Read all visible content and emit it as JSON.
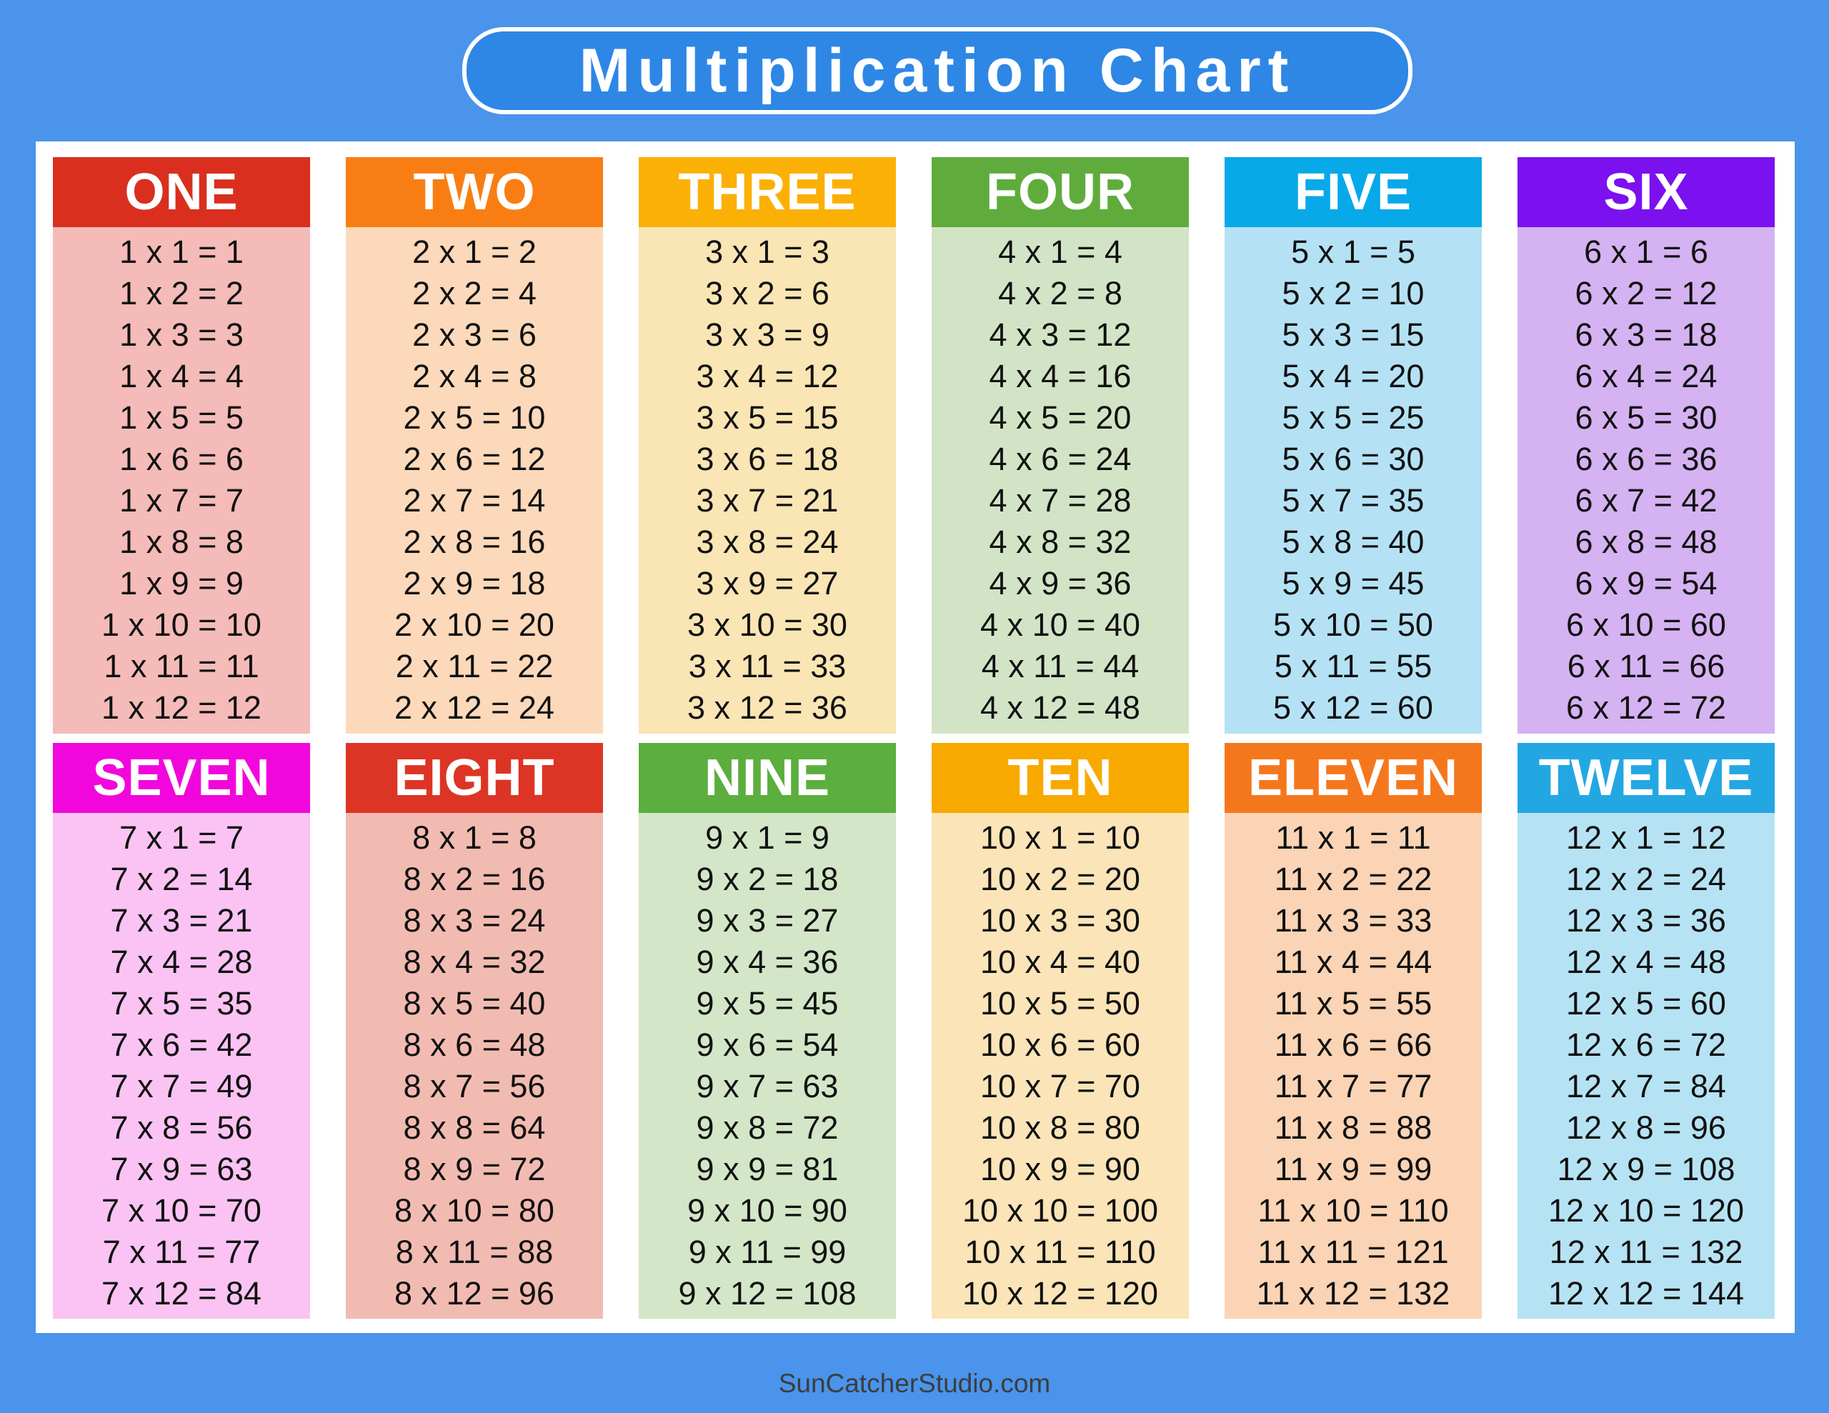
{
  "title": "Multiplication Chart",
  "footer": "SunCatcherStudio.com",
  "colors": {
    "background": "#4A94EB",
    "panel": "#FFFFFF",
    "title_box_fill": "#2E87E5",
    "title_box_border": "#FFFFFF",
    "title_text": "#FFFFFF",
    "fact_text": "#111111",
    "footer_text": "#3D3D3D"
  },
  "tables": [
    {
      "label": "ONE",
      "header_color": "#DA2F1E",
      "body_color": "#F4BBB8",
      "rows": [
        "1 x 1 = 1",
        "1 x 2 = 2",
        "1 x 3 = 3",
        "1 x 4 = 4",
        "1 x 5 = 5",
        "1 x 6 = 6",
        "1 x 7 = 7",
        "1 x 8 = 8",
        "1 x 9 = 9",
        "1 x 10 = 10",
        "1 x 11 = 11",
        "1 x 12 = 12"
      ]
    },
    {
      "label": "TWO",
      "header_color": "#F87E14",
      "body_color": "#FCD9BA",
      "rows": [
        "2 x 1 = 2",
        "2 x 2 = 4",
        "2 x 3 = 6",
        "2 x 4 = 8",
        "2 x 5 = 10",
        "2 x 6 = 12",
        "2 x 7 = 14",
        "2 x 8 = 16",
        "2 x 9 = 18",
        "2 x 10 = 20",
        "2 x 11 = 22",
        "2 x 12 = 24"
      ]
    },
    {
      "label": "THREE",
      "header_color": "#FBB005",
      "body_color": "#FAE5B4",
      "rows": [
        "3 x 1 = 3",
        "3 x 2 = 6",
        "3 x 3 = 9",
        "3 x 4 = 12",
        "3 x 5 = 15",
        "3 x 6 = 18",
        "3 x 7 = 21",
        "3 x 8 = 24",
        "3 x 9 = 27",
        "3 x 10 = 30",
        "3 x 11 = 33",
        "3 x 12 = 36"
      ]
    },
    {
      "label": "FOUR",
      "header_color": "#5FAC3C",
      "body_color": "#D3E4C6",
      "rows": [
        "4 x 1 = 4",
        "4 x 2 = 8",
        "4 x 3 = 12",
        "4 x 4 = 16",
        "4 x 5 = 20",
        "4 x 6 = 24",
        "4 x 7 = 28",
        "4 x 8 = 32",
        "4 x 9 = 36",
        "4 x 10 = 40",
        "4 x 11 = 44",
        "4 x 12 = 48"
      ]
    },
    {
      "label": "FIVE",
      "header_color": "#07A9E9",
      "body_color": "#B4E2F4",
      "rows": [
        "5 x 1 = 5",
        "5 x 2 = 10",
        "5 x 3 = 15",
        "5 x 4 = 20",
        "5 x 5 = 25",
        "5 x 6 = 30",
        "5 x 7 = 35",
        "5 x 8 = 40",
        "5 x 9 = 45",
        "5 x 10 = 50",
        "5 x 11 = 55",
        "5 x 12 = 60"
      ]
    },
    {
      "label": "SIX",
      "header_color": "#7B11EE",
      "body_color": "#D5B2F2",
      "rows": [
        "6 x 1 = 6",
        "6 x 2 = 12",
        "6 x 3 = 18",
        "6 x 4 = 24",
        "6 x 5 = 30",
        "6 x 6 = 36",
        "6 x 7 = 42",
        "6 x 8 = 48",
        "6 x 9 = 54",
        "6 x 10 = 60",
        "6 x 11 = 66",
        "6 x 12 = 72"
      ]
    },
    {
      "label": "SEVEN",
      "header_color": "#F107DB",
      "body_color": "#FBC3F4",
      "rows": [
        "7 x 1 = 7",
        "7 x 2 = 14",
        "7 x 3 = 21",
        "7 x 4 = 28",
        "7 x 5 = 35",
        "7 x 6 = 42",
        "7 x 7 = 49",
        "7 x 8 = 56",
        "7 x 9 = 63",
        "7 x 10 = 70",
        "7 x 11 = 77",
        "7 x 12 = 84"
      ]
    },
    {
      "label": "EIGHT",
      "header_color": "#DC3525",
      "body_color": "#F2BBB2",
      "rows": [
        "8 x 1 = 8",
        "8 x 2 = 16",
        "8 x 3 = 24",
        "8 x 4 = 32",
        "8 x 5 = 40",
        "8 x 6 = 48",
        "8 x 7 = 56",
        "8 x 8 = 64",
        "8 x 9 = 72",
        "8 x 10 = 80",
        "8 x 11 = 88",
        "8 x 12 = 96"
      ]
    },
    {
      "label": "NINE",
      "header_color": "#5CAE3E",
      "body_color": "#D4E6C8",
      "rows": [
        "9 x 1 = 9",
        "9 x 2 = 18",
        "9 x 3 = 27",
        "9 x 4 = 36",
        "9 x 5 = 45",
        "9 x 6 = 54",
        "9 x 7 = 63",
        "9 x 8 = 72",
        "9 x 9 = 81",
        "9 x 10 = 90",
        "9 x 11 = 99",
        "9 x 12 = 108"
      ]
    },
    {
      "label": "TEN",
      "header_color": "#F7A900",
      "body_color": "#FAE4B8",
      "rows": [
        "10 x 1 = 10",
        "10 x 2 = 20",
        "10 x 3 = 30",
        "10 x 4 = 40",
        "10 x 5 = 50",
        "10 x 6 = 60",
        "10 x 7 = 70",
        "10 x 8 = 80",
        "10 x 9 = 90",
        "10 x 10 = 100",
        "10 x 11 = 110",
        "10 x 12 = 120"
      ]
    },
    {
      "label": "ELEVEN",
      "header_color": "#F5771D",
      "body_color": "#FAD4B5",
      "rows": [
        "11 x 1 = 11",
        "11 x 2 = 22",
        "11 x 3 = 33",
        "11 x 4 = 44",
        "11 x 5 = 55",
        "11 x 6 = 66",
        "11 x 7 = 77",
        "11 x 8 = 88",
        "11 x 9 = 99",
        "11 x 10 = 110",
        "11 x 11 = 121",
        "11 x 12 = 132"
      ]
    },
    {
      "label": "TWELVE",
      "header_color": "#23A7E2",
      "body_color": "#B6E3F4",
      "rows": [
        "12 x 1 = 12",
        "12 x 2 = 24",
        "12 x 3 = 36",
        "12 x 4 = 48",
        "12 x 5 = 60",
        "12 x 6 = 72",
        "12 x 7 = 84",
        "12 x 8 = 96",
        "12 x 9 = 108",
        "12 x 10 = 120",
        "12 x 11 = 132",
        "12 x 12 = 144"
      ]
    }
  ]
}
